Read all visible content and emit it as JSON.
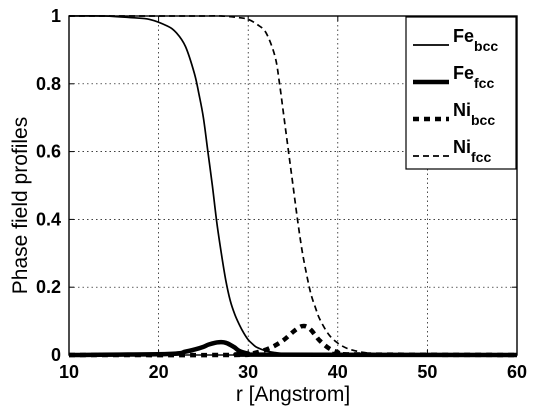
{
  "chart_data": {
    "type": "line",
    "title": "",
    "xlabel": "r [Angstrom]",
    "ylabel": "Phase field profiles",
    "xlim": [
      10,
      60
    ],
    "ylim": [
      0,
      1
    ],
    "xticks": [
      10,
      20,
      30,
      40,
      50,
      60
    ],
    "yticks": [
      0,
      0.2,
      0.4,
      0.6,
      0.8,
      1
    ],
    "grid": true,
    "legend_position": "top-right",
    "series": [
      {
        "name_base": "Fe",
        "name_sub": "bcc",
        "style": "solid-thin",
        "x": [
          10,
          14,
          17,
          19,
          21,
          22,
          23,
          24,
          24.5,
          25,
          25.5,
          26,
          26.5,
          27,
          27.5,
          28,
          28.5,
          29,
          29.5,
          30,
          30.5,
          31,
          32,
          33,
          34,
          36,
          38,
          40,
          60
        ],
        "y": [
          1.0,
          1.0,
          0.995,
          0.99,
          0.97,
          0.95,
          0.91,
          0.83,
          0.77,
          0.7,
          0.6,
          0.5,
          0.39,
          0.3,
          0.22,
          0.16,
          0.12,
          0.09,
          0.065,
          0.045,
          0.032,
          0.022,
          0.012,
          0.007,
          0.004,
          0.001,
          0.0,
          0.0,
          0.0
        ]
      },
      {
        "name_base": "Fe",
        "name_sub": "fcc",
        "style": "solid-thick",
        "x": [
          10,
          21,
          23,
          24,
          25,
          25.5,
          26,
          26.5,
          27,
          27.5,
          28,
          28.5,
          29,
          30,
          31,
          60
        ],
        "y": [
          0.0,
          0.003,
          0.01,
          0.016,
          0.024,
          0.03,
          0.034,
          0.037,
          0.038,
          0.036,
          0.03,
          0.022,
          0.012,
          0.004,
          0.001,
          0.0
        ]
      },
      {
        "name_base": "Ni",
        "name_sub": "bcc",
        "style": "dashed-thick",
        "x": [
          10,
          28,
          30,
          31,
          32,
          33,
          34,
          35,
          35.5,
          36,
          36.5,
          37,
          37.5,
          38,
          39,
          40,
          41,
          60
        ],
        "y": [
          0.0,
          0.0,
          0.003,
          0.008,
          0.016,
          0.028,
          0.045,
          0.068,
          0.078,
          0.085,
          0.084,
          0.074,
          0.058,
          0.042,
          0.02,
          0.008,
          0.002,
          0.0
        ]
      },
      {
        "name_base": "Ni",
        "name_sub": "fcc",
        "style": "dashed-thin",
        "x": [
          10,
          24,
          27,
          29,
          30,
          31,
          32,
          33,
          33.5,
          34,
          34.5,
          35,
          35.5,
          36,
          36.5,
          37,
          37.5,
          38,
          39,
          40,
          41,
          42,
          43,
          44,
          46,
          48,
          60
        ],
        "y": [
          1.0,
          1.0,
          1.0,
          0.995,
          0.99,
          0.975,
          0.95,
          0.88,
          0.8,
          0.7,
          0.6,
          0.5,
          0.4,
          0.31,
          0.24,
          0.18,
          0.14,
          0.105,
          0.06,
          0.035,
          0.02,
          0.012,
          0.007,
          0.004,
          0.001,
          0.0,
          0.0
        ]
      }
    ]
  }
}
